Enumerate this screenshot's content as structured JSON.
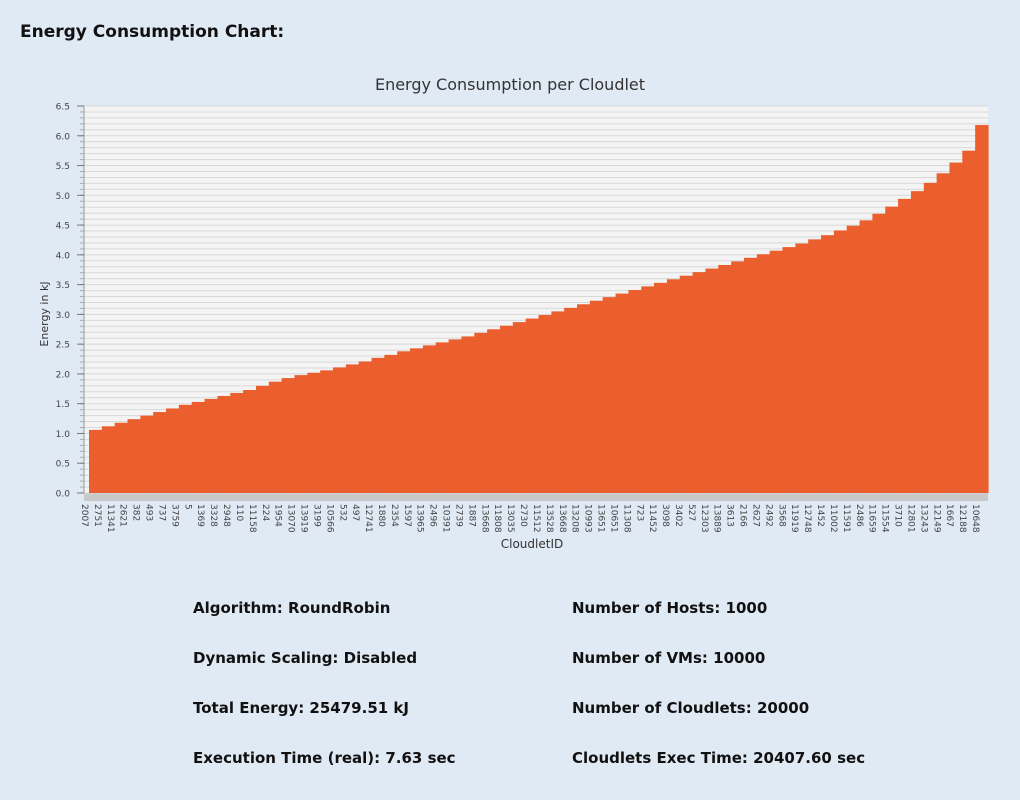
{
  "header": {
    "title": "Energy Consumption Chart:"
  },
  "chart_data": {
    "type": "area",
    "title": "Energy Consumption per Cloudlet",
    "xlabel": "CloudletID",
    "ylabel": "Energy in kJ",
    "ylim": [
      0,
      6.5
    ],
    "yticks": [
      0.0,
      0.5,
      1.0,
      1.5,
      2.0,
      2.5,
      3.0,
      3.5,
      4.0,
      4.5,
      5.0,
      5.5,
      6.0,
      6.5
    ],
    "grid": true,
    "legend": "none",
    "color": "#eb5e2d",
    "x_tick_labels": [
      "2007",
      "2751",
      "11341",
      "2621",
      "382",
      "493",
      "737",
      "3759",
      "5",
      "1369",
      "3328",
      "2948",
      "110",
      "11158",
      "224",
      "1954",
      "13070",
      "13919",
      "3199",
      "10566",
      "532",
      "497",
      "12741",
      "1880",
      "2354",
      "1597",
      "13965",
      "2496",
      "10391",
      "2739",
      "1887",
      "13668",
      "11808",
      "13035",
      "2730",
      "11512",
      "13528",
      "13668",
      "13208",
      "10993",
      "13651",
      "10651",
      "11308",
      "723",
      "11452",
      "3098",
      "3402",
      "527",
      "12303",
      "13889",
      "3613",
      "2166",
      "2627",
      "2492",
      "3568",
      "11919",
      "12748",
      "1452",
      "11002",
      "11591",
      "2486",
      "11659",
      "11554",
      "3710",
      "12801",
      "13243",
      "12149",
      "1667",
      "12188",
      "10648"
    ],
    "values": [
      1.06,
      1.12,
      1.18,
      1.24,
      1.3,
      1.36,
      1.42,
      1.48,
      1.53,
      1.58,
      1.63,
      1.68,
      1.73,
      1.8,
      1.87,
      1.93,
      1.98,
      2.02,
      2.06,
      2.11,
      2.16,
      2.21,
      2.27,
      2.32,
      2.38,
      2.43,
      2.48,
      2.53,
      2.58,
      2.63,
      2.69,
      2.75,
      2.81,
      2.87,
      2.93,
      2.99,
      3.05,
      3.11,
      3.17,
      3.23,
      3.29,
      3.35,
      3.41,
      3.47,
      3.53,
      3.59,
      3.65,
      3.71,
      3.77,
      3.83,
      3.89,
      3.95,
      4.01,
      4.07,
      4.13,
      4.19,
      4.26,
      4.33,
      4.41,
      4.49,
      4.58,
      4.69,
      4.81,
      4.94,
      5.07,
      5.21,
      5.37,
      5.55,
      5.75,
      6.18
    ]
  },
  "stats": {
    "algorithm": "Algorithm: RoundRobin",
    "hosts": "Number of Hosts: 1000",
    "scaling": "Dynamic Scaling: Disabled",
    "vms": "Number of VMs: 10000",
    "energy": "Total Energy: 25479.51 kJ",
    "cloudlets": "Number of Cloudlets: 20000",
    "exec_real": "Execution Time (real): 7.63 sec",
    "exec_cloudlets": "Cloudlets Exec Time: 20407.60 sec"
  }
}
